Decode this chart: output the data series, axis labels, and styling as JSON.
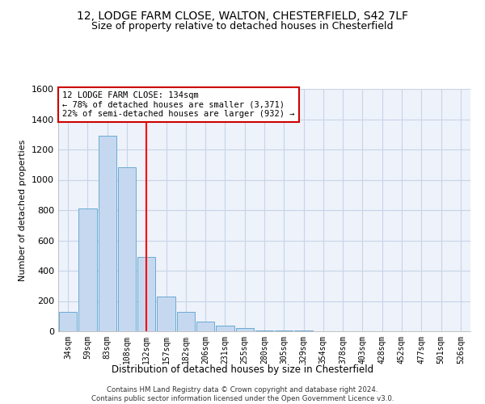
{
  "title1": "12, LODGE FARM CLOSE, WALTON, CHESTERFIELD, S42 7LF",
  "title2": "Size of property relative to detached houses in Chesterfield",
  "xlabel": "Distribution of detached houses by size in Chesterfield",
  "ylabel": "Number of detached properties",
  "footnote": "Contains HM Land Registry data © Crown copyright and database right 2024.\nContains public sector information licensed under the Open Government Licence v3.0.",
  "bar_labels": [
    "34sqm",
    "59sqm",
    "83sqm",
    "108sqm",
    "132sqm",
    "157sqm",
    "182sqm",
    "206sqm",
    "231sqm",
    "255sqm",
    "280sqm",
    "305sqm",
    "329sqm",
    "354sqm",
    "378sqm",
    "403sqm",
    "428sqm",
    "452sqm",
    "477sqm",
    "501sqm",
    "526sqm"
  ],
  "bar_heights": [
    130,
    810,
    1290,
    1085,
    490,
    230,
    130,
    65,
    35,
    20,
    8,
    5,
    3,
    2,
    2,
    1,
    1,
    1,
    1,
    1,
    1
  ],
  "bar_color": "#c5d8f0",
  "bar_edge_color": "#6aabd2",
  "red_line_index": 4,
  "ylim": [
    0,
    1600
  ],
  "yticks": [
    0,
    200,
    400,
    600,
    800,
    1000,
    1200,
    1400,
    1600
  ],
  "annotation_line1": "12 LODGE FARM CLOSE: 134sqm",
  "annotation_line2": "← 78% of detached houses are smaller (3,371)",
  "annotation_line3": "22% of semi-detached houses are larger (932) →",
  "annotation_box_color": "#ffffff",
  "annotation_box_edge": "#cc0000",
  "title1_fontsize": 10,
  "title2_fontsize": 9,
  "grid_color": "#c8d4e8",
  "background_color": "#eef2fa"
}
